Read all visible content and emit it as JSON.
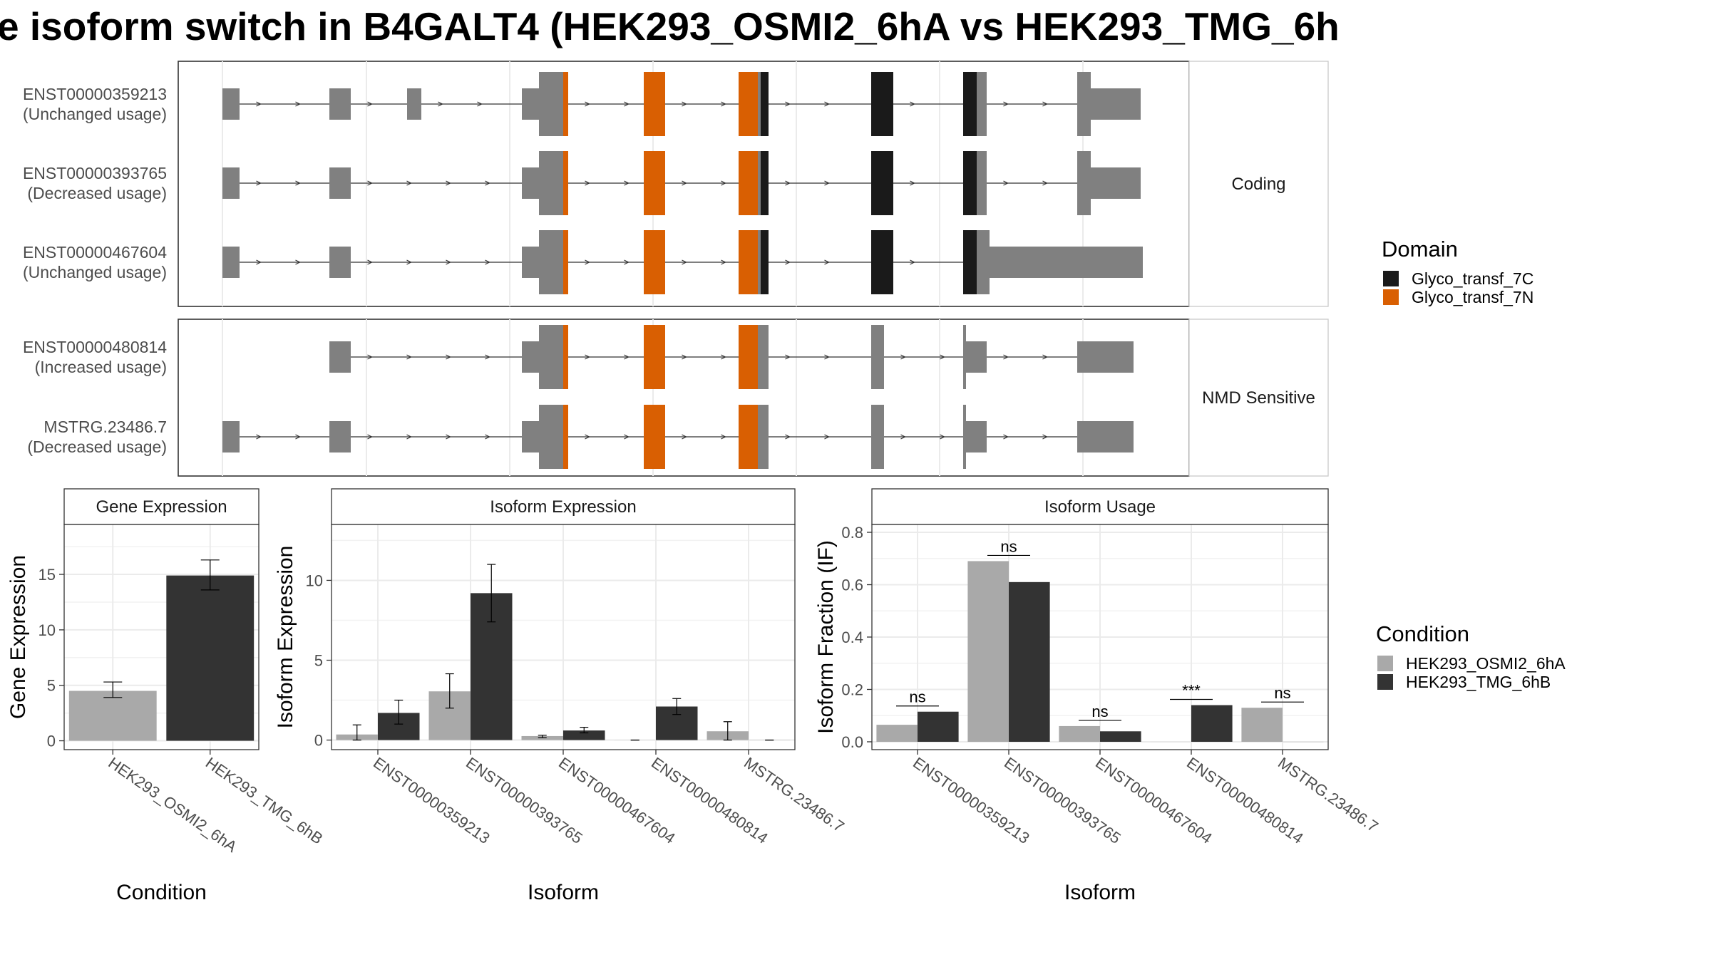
{
  "title": "e isoform switch in B4GALT4 (HEK293_OSMI2_6hA vs HEK293_TMG_6h",
  "structure_panel": {
    "groups": [
      {
        "label": "Coding",
        "isoforms": [
          {
            "id": "ENST00000359213",
            "usage": "(Unchanged usage)"
          },
          {
            "id": "ENST00000393765",
            "usage": "(Decreased usage)"
          },
          {
            "id": "ENST00000467604",
            "usage": "(Unchanged usage)"
          }
        ]
      },
      {
        "label": "NMD Sensitive",
        "isoforms": [
          {
            "id": "ENST00000480814",
            "usage": "(Increased usage)"
          },
          {
            "id": "MSTRG.23486.7",
            "usage": "(Decreased usage)"
          }
        ]
      }
    ],
    "domain_legend": {
      "title": "Domain",
      "items": [
        {
          "label": "Glyco_transf_7C",
          "color": "#1a1a1a"
        },
        {
          "label": "Glyco_transf_7N",
          "color": "#d95f02"
        }
      ]
    },
    "exon_color": "#808080"
  },
  "condition_legend": {
    "title": "Condition",
    "items": [
      {
        "label": "HEK293_OSMI2_6hA",
        "color": "#a9a9a9"
      },
      {
        "label": "HEK293_TMG_6hB",
        "color": "#333333"
      }
    ]
  },
  "chart_data": [
    {
      "type": "bar",
      "strip": "Gene Expression",
      "xlabel": "Condition",
      "ylabel": "Gene Expression",
      "categories": [
        "HEK293_OSMI2_6hA",
        "HEK293_TMG_6hB"
      ],
      "values": [
        4.5,
        14.9
      ],
      "errors": [
        [
          3.9,
          5.3
        ],
        [
          13.6,
          16.3
        ]
      ],
      "colors": [
        "#a9a9a9",
        "#333333"
      ],
      "ylim": [
        -0.8,
        19.5
      ],
      "yticks": [
        0,
        5,
        10,
        15
      ]
    },
    {
      "type": "bar",
      "strip": "Isoform Expression",
      "xlabel": "Isoform",
      "ylabel": "Isoform Expression",
      "categories": [
        "ENST00000359213",
        "ENST00000393765",
        "ENST00000467604",
        "ENST00000480814",
        "MSTRG.23486.7"
      ],
      "series": [
        {
          "name": "HEK293_OSMI2_6hA",
          "values": [
            0.35,
            3.05,
            0.25,
            0.0,
            0.55
          ],
          "errors": [
            [
              0.0,
              0.95
            ],
            [
              2.0,
              4.15
            ],
            [
              0.15,
              0.3
            ],
            [
              0.0,
              0.0
            ],
            [
              0.0,
              1.15
            ]
          ]
        },
        {
          "name": "HEK293_TMG_6hB",
          "values": [
            1.7,
            9.2,
            0.6,
            2.1,
            0.0
          ],
          "errors": [
            [
              1.0,
              2.5
            ],
            [
              7.4,
              11.0
            ],
            [
              0.45,
              0.8
            ],
            [
              1.6,
              2.6
            ],
            [
              0.0,
              0.0
            ]
          ]
        }
      ],
      "ylim": [
        -0.6,
        13.5
      ],
      "yticks": [
        0,
        5,
        10
      ]
    },
    {
      "type": "bar",
      "strip": "Isoform Usage",
      "xlabel": "Isoform",
      "ylabel": "Isoform Fraction (IF)",
      "categories": [
        "ENST00000359213",
        "ENST00000393765",
        "ENST00000467604",
        "ENST00000480814",
        "MSTRG.23486.7"
      ],
      "series": [
        {
          "name": "HEK293_OSMI2_6hA",
          "values": [
            0.065,
            0.69,
            0.06,
            0.0,
            0.13
          ]
        },
        {
          "name": "HEK293_TMG_6hB",
          "values": [
            0.115,
            0.61,
            0.04,
            0.14,
            0.0
          ]
        }
      ],
      "significance": [
        "ns",
        "ns",
        "ns",
        "***",
        "ns"
      ],
      "ylim": [
        -0.03,
        0.83
      ],
      "yticks": [
        "0.0",
        "0.2",
        "0.4",
        "0.6",
        "0.8"
      ]
    }
  ]
}
